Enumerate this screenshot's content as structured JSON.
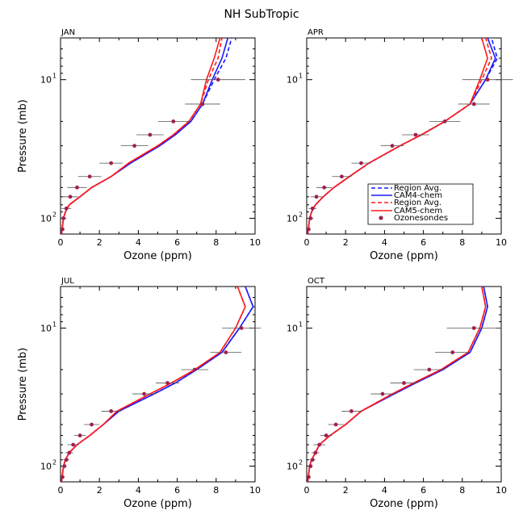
{
  "figure": {
    "title": "NH SubTropic"
  },
  "colors": {
    "cam4": "#1a1aff",
    "cam5": "#ff1a1a",
    "sonde": "#a0204e",
    "errorbar": "#555555"
  },
  "legend": {
    "entries": [
      "Region Avg.",
      "CAM4-chem",
      "Region Avg.",
      "CAM5-chem",
      "Ozonesondes"
    ]
  },
  "chart_data": [
    {
      "type": "line",
      "title": "JAN",
      "xlabel": "Ozone (ppm)",
      "ylabel": "Pressure (mb)",
      "xlim": [
        0,
        10
      ],
      "ylim_log_pressure": [
        130,
        5
      ],
      "x_ticks": [
        "0",
        "2",
        "4",
        "6",
        "8",
        "10"
      ],
      "y_ticks": [
        {
          "p": 10,
          "base": "10",
          "exp": "1"
        },
        {
          "p": 100,
          "base": "10",
          "exp": "2"
        }
      ],
      "pressure": [
        130,
        115,
        100,
        90,
        80,
        70,
        60,
        50,
        40,
        30,
        25,
        20,
        15,
        10,
        7,
        5
      ],
      "series": [
        {
          "name": "CAM4-chem Region Avg.",
          "style": "dashed",
          "color": "cam4",
          "values": [
            0.05,
            0.1,
            0.15,
            0.25,
            0.45,
            1.0,
            1.6,
            2.6,
            3.6,
            5.1,
            5.9,
            6.7,
            7.3,
            7.9,
            8.5,
            8.8
          ]
        },
        {
          "name": "CAM4-chem",
          "style": "solid",
          "color": "cam4",
          "values": [
            0.05,
            0.1,
            0.15,
            0.25,
            0.45,
            1.0,
            1.6,
            2.6,
            3.6,
            5.1,
            5.9,
            6.7,
            7.3,
            7.8,
            8.3,
            8.6
          ]
        },
        {
          "name": "CAM5-chem Region Avg.",
          "style": "dashed",
          "color": "cam5",
          "values": [
            0.05,
            0.1,
            0.15,
            0.25,
            0.45,
            1.0,
            1.6,
            2.6,
            3.5,
            5.0,
            5.8,
            6.6,
            7.2,
            7.6,
            8.1,
            8.3
          ]
        },
        {
          "name": "CAM5-chem",
          "style": "solid",
          "color": "cam5",
          "values": [
            0.05,
            0.1,
            0.15,
            0.25,
            0.45,
            1.0,
            1.6,
            2.6,
            3.5,
            5.0,
            5.8,
            6.6,
            7.2,
            7.5,
            7.9,
            8.2
          ]
        }
      ],
      "sondes": {
        "pressure": [
          120,
          100,
          85,
          70,
          60,
          50,
          40,
          30,
          25,
          20,
          15,
          10
        ],
        "values": [
          0.1,
          0.15,
          0.3,
          0.5,
          0.85,
          1.5,
          2.6,
          3.8,
          4.6,
          5.8,
          7.3,
          8.1
        ],
        "err": [
          0.1,
          0.15,
          0.25,
          0.4,
          0.5,
          0.6,
          0.6,
          0.7,
          0.7,
          0.8,
          0.9,
          1.4
        ]
      }
    },
    {
      "type": "line",
      "title": "APR",
      "xlabel": "Ozone (ppm)",
      "ylabel": "",
      "xlim": [
        0,
        10
      ],
      "ylim_log_pressure": [
        130,
        5
      ],
      "x_ticks": [
        "0",
        "2",
        "4",
        "6",
        "8",
        "10"
      ],
      "y_ticks": [
        {
          "p": 10,
          "base": "10",
          "exp": "1"
        },
        {
          "p": 100,
          "base": "10",
          "exp": "2"
        }
      ],
      "pressure": [
        130,
        115,
        100,
        90,
        80,
        70,
        60,
        50,
        40,
        30,
        25,
        20,
        15,
        10,
        7,
        5
      ],
      "series": [
        {
          "name": "CAM4-chem Region Avg.",
          "style": "dashed",
          "color": "cam4",
          "values": [
            0.05,
            0.1,
            0.15,
            0.25,
            0.45,
            0.85,
            1.4,
            2.2,
            3.2,
            4.8,
            5.9,
            7.1,
            8.4,
            9.2,
            9.8,
            9.5
          ]
        },
        {
          "name": "CAM4-chem",
          "style": "solid",
          "color": "cam4",
          "values": [
            0.05,
            0.1,
            0.15,
            0.25,
            0.45,
            0.85,
            1.4,
            2.2,
            3.2,
            4.8,
            5.9,
            7.1,
            8.4,
            9.2,
            9.7,
            9.3
          ]
        },
        {
          "name": "CAM5-chem Region Avg.",
          "style": "dashed",
          "color": "cam5",
          "values": [
            0.05,
            0.1,
            0.15,
            0.25,
            0.45,
            0.85,
            1.4,
            2.2,
            3.2,
            4.8,
            5.9,
            7.1,
            8.4,
            9.0,
            9.5,
            9.2
          ]
        },
        {
          "name": "CAM5-chem",
          "style": "solid",
          "color": "cam5",
          "values": [
            0.05,
            0.1,
            0.15,
            0.25,
            0.45,
            0.85,
            1.4,
            2.2,
            3.2,
            4.8,
            5.9,
            7.1,
            8.4,
            8.9,
            9.3,
            9.0
          ]
        }
      ],
      "sondes": {
        "pressure": [
          120,
          100,
          85,
          70,
          60,
          50,
          40,
          30,
          25,
          20,
          15,
          10
        ],
        "values": [
          0.1,
          0.2,
          0.3,
          0.5,
          0.9,
          1.8,
          2.8,
          4.4,
          5.6,
          7.1,
          8.6,
          9.3
        ],
        "err": [
          0.1,
          0.15,
          0.2,
          0.3,
          0.4,
          0.5,
          0.5,
          0.6,
          0.7,
          0.8,
          0.8,
          1.3
        ]
      }
    },
    {
      "type": "line",
      "title": "JUL",
      "xlabel": "Ozone (ppm)",
      "ylabel": "Pressure (mb)",
      "xlim": [
        0,
        10
      ],
      "ylim_log_pressure": [
        130,
        5
      ],
      "x_ticks": [
        "0",
        "2",
        "4",
        "6",
        "8",
        "10"
      ],
      "y_ticks": [
        {
          "p": 10,
          "base": "10",
          "exp": "1"
        },
        {
          "p": 100,
          "base": "10",
          "exp": "2"
        }
      ],
      "pressure": [
        130,
        115,
        100,
        90,
        80,
        70,
        60,
        50,
        40,
        30,
        25,
        20,
        15,
        10,
        7,
        5
      ],
      "series": [
        {
          "name": "CAM4-chem Region Avg.",
          "style": "dashed",
          "color": "cam4",
          "values": [
            0.05,
            0.1,
            0.15,
            0.25,
            0.45,
            0.85,
            1.5,
            2.2,
            3.0,
            4.8,
            5.9,
            7.0,
            8.3,
            9.2,
            9.9,
            9.5
          ]
        },
        {
          "name": "CAM4-chem",
          "style": "solid",
          "color": "cam4",
          "values": [
            0.05,
            0.1,
            0.15,
            0.25,
            0.45,
            0.85,
            1.5,
            2.2,
            3.0,
            4.8,
            5.9,
            7.0,
            8.3,
            9.2,
            9.9,
            9.5
          ]
        },
        {
          "name": "CAM5-chem Region Avg.",
          "style": "dashed",
          "color": "cam5",
          "values": [
            0.05,
            0.1,
            0.15,
            0.25,
            0.45,
            0.85,
            1.5,
            2.2,
            2.9,
            4.6,
            5.7,
            6.9,
            8.2,
            9.0,
            9.5,
            9.1
          ]
        },
        {
          "name": "CAM5-chem",
          "style": "solid",
          "color": "cam5",
          "values": [
            0.05,
            0.1,
            0.15,
            0.25,
            0.45,
            0.85,
            1.5,
            2.2,
            2.9,
            4.6,
            5.7,
            6.9,
            8.2,
            9.0,
            9.5,
            9.1
          ]
        }
      ],
      "sondes": {
        "pressure": [
          120,
          100,
          90,
          80,
          70,
          60,
          50,
          40,
          30,
          25,
          20,
          15,
          10
        ],
        "values": [
          0.1,
          0.2,
          0.3,
          0.45,
          0.65,
          1.0,
          1.6,
          2.6,
          4.3,
          5.5,
          6.9,
          8.5,
          9.3
        ],
        "err": [
          0.1,
          0.1,
          0.15,
          0.2,
          0.3,
          0.3,
          0.4,
          0.5,
          0.6,
          0.6,
          0.7,
          0.8,
          1.0
        ]
      }
    },
    {
      "type": "line",
      "title": "OCT",
      "xlabel": "Ozone (ppm)",
      "ylabel": "",
      "xlim": [
        0,
        10
      ],
      "ylim_log_pressure": [
        130,
        5
      ],
      "x_ticks": [
        "0",
        "2",
        "4",
        "6",
        "8",
        "10"
      ],
      "y_ticks": [
        {
          "p": 10,
          "base": "10",
          "exp": "1"
        },
        {
          "p": 100,
          "base": "10",
          "exp": "2"
        }
      ],
      "pressure": [
        130,
        115,
        100,
        90,
        80,
        70,
        60,
        50,
        40,
        30,
        25,
        20,
        15,
        10,
        7,
        5
      ],
      "series": [
        {
          "name": "CAM4-chem Region Avg.",
          "style": "dashed",
          "color": "cam4",
          "values": [
            0.05,
            0.1,
            0.15,
            0.25,
            0.45,
            0.65,
            1.2,
            2.0,
            2.8,
            4.5,
            5.6,
            7.0,
            8.4,
            9.0,
            9.3,
            9.1
          ]
        },
        {
          "name": "CAM4-chem",
          "style": "solid",
          "color": "cam4",
          "values": [
            0.05,
            0.1,
            0.15,
            0.25,
            0.45,
            0.65,
            1.2,
            2.0,
            2.8,
            4.5,
            5.6,
            7.0,
            8.4,
            9.0,
            9.3,
            9.1
          ]
        },
        {
          "name": "CAM5-chem Region Avg.",
          "style": "dashed",
          "color": "cam5",
          "values": [
            0.05,
            0.1,
            0.15,
            0.25,
            0.45,
            0.65,
            1.2,
            2.0,
            2.8,
            4.4,
            5.5,
            6.9,
            8.3,
            8.9,
            9.2,
            9.0
          ]
        },
        {
          "name": "CAM5-chem",
          "style": "solid",
          "color": "cam5",
          "values": [
            0.05,
            0.1,
            0.15,
            0.25,
            0.45,
            0.65,
            1.2,
            2.0,
            2.8,
            4.4,
            5.5,
            6.9,
            8.3,
            8.9,
            9.2,
            9.0
          ]
        }
      ],
      "sondes": {
        "pressure": [
          120,
          100,
          90,
          80,
          70,
          60,
          50,
          40,
          30,
          25,
          20,
          15,
          10
        ],
        "values": [
          0.1,
          0.2,
          0.3,
          0.45,
          0.65,
          1.0,
          1.5,
          2.3,
          3.9,
          5.0,
          6.3,
          7.5,
          8.6
        ],
        "err": [
          0.1,
          0.1,
          0.15,
          0.2,
          0.3,
          0.3,
          0.4,
          0.5,
          0.6,
          0.7,
          0.8,
          0.9,
          1.4
        ]
      }
    }
  ]
}
